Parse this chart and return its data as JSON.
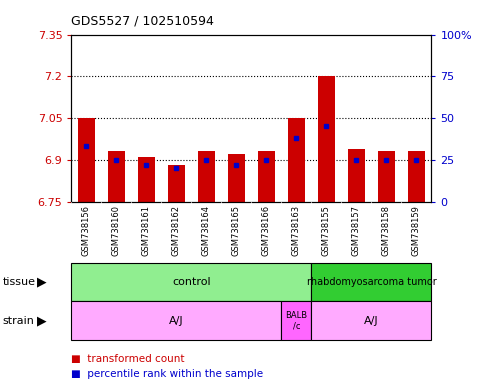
{
  "title": "GDS5527 / 102510594",
  "samples": [
    "GSM738156",
    "GSM738160",
    "GSM738161",
    "GSM738162",
    "GSM738164",
    "GSM738165",
    "GSM738166",
    "GSM738163",
    "GSM738155",
    "GSM738157",
    "GSM738158",
    "GSM738159"
  ],
  "red_values": [
    7.05,
    6.93,
    6.91,
    6.88,
    6.93,
    6.92,
    6.93,
    7.05,
    7.2,
    6.94,
    6.93,
    6.93
  ],
  "blue_values": [
    33,
    25,
    22,
    20,
    25,
    22,
    25,
    38,
    45,
    25,
    25,
    25
  ],
  "ymin": 6.75,
  "ymax": 7.35,
  "yticks": [
    6.75,
    6.9,
    7.05,
    7.2,
    7.35
  ],
  "ytick_labels": [
    "6.75",
    "6.9",
    "7.05",
    "7.2",
    "7.35"
  ],
  "right_yticks": [
    0,
    25,
    50,
    75,
    100
  ],
  "right_ytick_labels": [
    "0",
    "25",
    "50",
    "75",
    "100%"
  ],
  "red_color": "#CC0000",
  "blue_color": "#0000CC",
  "tissue_control_color": "#90EE90",
  "tissue_tumor_color": "#32CD32",
  "strain_color": "#FFAAFF",
  "strain_balb_color": "#FF66FF",
  "bg_color": "#FFFFFF",
  "label_bg_color": "#CCCCCC",
  "n_control": 8,
  "n_balb": 1,
  "n_aj2": 4,
  "n_total": 12,
  "dotted_lines": [
    6.9,
    7.05,
    7.2
  ]
}
